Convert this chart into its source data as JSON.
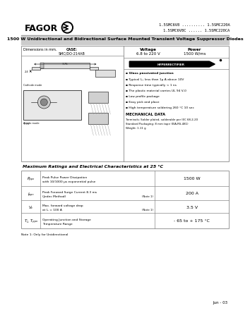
{
  "title_part_numbers_line1": "1.5SMC6V8 .......... 1.5SMC220A",
  "title_part_numbers_line2": "1.5SMC6V8C ...... 1.5SMC220CA",
  "main_title": "1500 W Unidirectional and Bidirectional Surface Mounted Transient Voltage Suppressor Diodes",
  "case_label": "CASE:",
  "case": "SMC/DO-214AB",
  "voltage_label": "Voltage",
  "voltage": "6.8 to 220 V",
  "power_label": "Power",
  "power": "1500 W/ms",
  "hyperrectifier": "HYPERRECTIFIER",
  "features": [
    "Glass passivated junction",
    "Typical I₂₂ less than 1μ A above 10V",
    "Response time typically < 1 ns",
    "The plastic material carries UL 94 V-0",
    "Low profile package",
    "Easy pick and place",
    "High temperature soldering 260 °C 10 sec"
  ],
  "mech_title": "MECHANICAL DATA",
  "mech_lines": [
    "Terminals: Solder plated, solderable per IEC 68-2-20",
    "Standard Packaging: 8 mm tape (EIA-RS-481)",
    "Weight: 1.11 g"
  ],
  "table_title": "Maximum Ratings and Electrical Characteristics at 25 °C",
  "table_rows": [
    {
      "symbol": "Pₚₚₙ",
      "desc1": "Peak Pulse Power Dissipation",
      "desc2": "with 10/1000 μs exponential pulse",
      "note": "",
      "value": "1500 W"
    },
    {
      "symbol": "Iₚₚₙ",
      "desc1": "Peak Forward Surge Current 8.3 ms",
      "desc2": "(Jedec Method)",
      "note": "(Note 1)",
      "value": "200 A"
    },
    {
      "symbol": "Vₑ",
      "desc1": "Max. forward voltage drop",
      "desc2": "at Iₑ = 100 A",
      "note": "(Note 1)",
      "value": "3.5 V"
    },
    {
      "symbol": "Tⱼ, Tₚₚₙ",
      "desc1": "Operating Junction and Storage",
      "desc2": "Temperature Range",
      "note": "",
      "value": "- 65 to + 175 °C"
    }
  ],
  "note_text": "Note 1: Only for Unidirectional",
  "date": "Jun - 03",
  "dim_label": "Dimensions in mm."
}
